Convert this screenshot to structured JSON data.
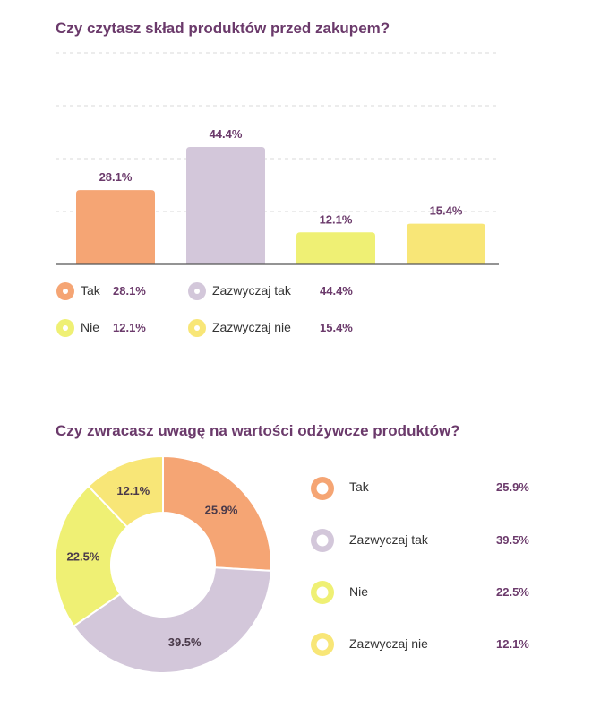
{
  "colors": {
    "tak": "#f5a574",
    "zazwyczaj_tak": "#d3c7da",
    "nie": "#eff074",
    "zazwyczaj_nie": "#f8e677",
    "title": "#6b3a6b",
    "grid": "#d9d9d9"
  },
  "chart_data": [
    {
      "type": "bar",
      "title": "Czy czytasz skład produktów przed zakupem?",
      "categories": [
        "Tak",
        "Zazwyczaj tak",
        "Nie",
        "Zazwyczaj nie"
      ],
      "values": [
        28.1,
        44.4,
        12.1,
        15.4
      ],
      "value_labels": [
        "28.1%",
        "44.4%",
        "12.1%",
        "15.4%"
      ],
      "colors": [
        "#f5a574",
        "#d3c7da",
        "#eff074",
        "#f8e677"
      ],
      "ylim": [
        0,
        100
      ],
      "grid": true,
      "legend": [
        {
          "label": "Tak",
          "value": "28.1%"
        },
        {
          "label": "Zazwyczaj tak",
          "value": "44.4%"
        },
        {
          "label": "Nie",
          "value": "12.1%"
        },
        {
          "label": "Zazwyczaj nie",
          "value": "15.4%"
        }
      ]
    },
    {
      "type": "pie",
      "title": "Czy zwracasz uwagę na wartości odżywcze produktów?",
      "categories": [
        "Tak",
        "Zazwyczaj tak",
        "Nie",
        "Zazwyczaj nie"
      ],
      "values": [
        25.9,
        39.5,
        22.5,
        12.1
      ],
      "value_labels": [
        "25.9%",
        "39.5%",
        "22.5%",
        "12.1%"
      ],
      "colors": [
        "#f5a574",
        "#d3c7da",
        "#eff074",
        "#f8e677"
      ],
      "donut": true,
      "legend": [
        {
          "label": "Tak",
          "value": "25.9%"
        },
        {
          "label": "Zazwyczaj tak",
          "value": "39.5%"
        },
        {
          "label": "Nie",
          "value": "22.5%"
        },
        {
          "label": "Zazwyczaj nie",
          "value": "12.1%"
        }
      ]
    }
  ]
}
